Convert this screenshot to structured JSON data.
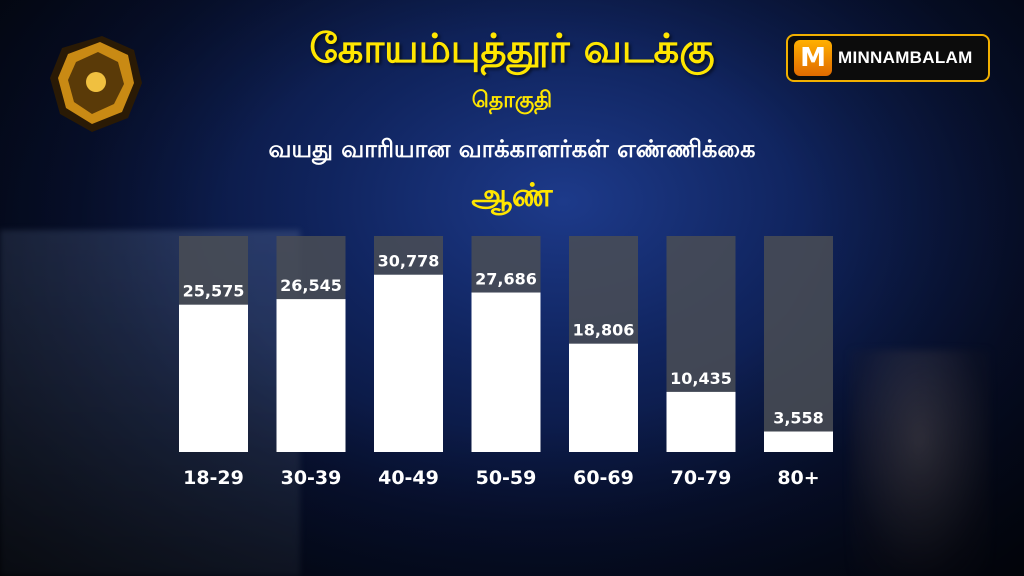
{
  "header": {
    "title": "கோயம்புத்தூர் வடக்கு",
    "subtitle": "தொகுதி",
    "caption": "வயது வாரியான வாக்காளர்கள் எண்ணிக்கை",
    "gender": "ஆண்"
  },
  "brand": {
    "name": "MINNAMBALAM",
    "icon": "M"
  },
  "colors": {
    "title": "#ffe600",
    "bar_fill": "#ffffff",
    "bar_track": "#4a4d55",
    "label": "#ffffff",
    "brand_border": "#f2b000"
  },
  "chart_data": {
    "type": "bar",
    "categories": [
      "18-29",
      "30-39",
      "40-49",
      "50-59",
      "60-69",
      "70-79",
      "80+"
    ],
    "values": [
      25575,
      26545,
      30778,
      27686,
      18806,
      10435,
      3558
    ],
    "value_labels": [
      "25,575",
      "26,545",
      "30,778",
      "27,686",
      "18,806",
      "10,435",
      "3,558"
    ],
    "ylim": [
      0,
      37500
    ],
    "grid": false,
    "legend": "none"
  }
}
